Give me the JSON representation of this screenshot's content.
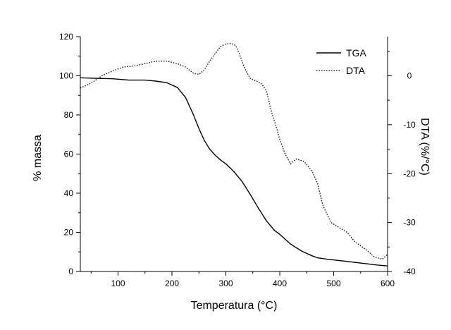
{
  "chart_data": {
    "type": "line",
    "xlabel": "Temperatura (°C)",
    "ylabel_left": "% massa",
    "ylabel_right": "DTA (%/°C)",
    "xlim": [
      30,
      600
    ],
    "ylim_left": [
      0,
      120
    ],
    "ylim_right": [
      -40,
      8
    ],
    "x_ticks": [
      100,
      200,
      300,
      400,
      500,
      600
    ],
    "y_left_ticks": [
      0,
      20,
      40,
      60,
      80,
      100,
      120
    ],
    "y_right_ticks": [
      -40,
      -30,
      -20,
      -10,
      0
    ],
    "legend_position": "top-right",
    "grid": false,
    "series": [
      {
        "name": "TGA",
        "axis": "left",
        "style": "solid",
        "x": [
          30,
          60,
          90,
          120,
          150,
          170,
          190,
          210,
          225,
          240,
          250,
          260,
          270,
          280,
          290,
          300,
          315,
          330,
          345,
          360,
          375,
          390,
          400,
          420,
          440,
          460,
          470,
          490,
          520,
          550,
          580,
          600
        ],
        "y": [
          99,
          98.7,
          98.5,
          97.8,
          97.8,
          97.3,
          96.5,
          94,
          89,
          80,
          73,
          67,
          62.5,
          59.5,
          57,
          55,
          51,
          46,
          39.5,
          32.5,
          26,
          21,
          19,
          14,
          10.5,
          8,
          7,
          6.2,
          5.3,
          4.3,
          3.3,
          2.8
        ]
      },
      {
        "name": "DTA",
        "axis": "right",
        "style": "dotted",
        "x": [
          30,
          50,
          70,
          90,
          110,
          130,
          150,
          170,
          190,
          210,
          225,
          240,
          250,
          260,
          270,
          280,
          290,
          300,
          310,
          318,
          325,
          335,
          345,
          355,
          365,
          375,
          385,
          395,
          400,
          410,
          420,
          430,
          445,
          460,
          470,
          480,
          495,
          510,
          525,
          540,
          560,
          575,
          590,
          600
        ],
        "y": [
          -2.5,
          -1.5,
          0,
          1,
          1.8,
          2,
          2.5,
          3,
          3,
          2.5,
          1.8,
          0.5,
          0.3,
          1.2,
          3,
          4.5,
          6,
          6.5,
          6.6,
          6.2,
          4.5,
          1.5,
          -0.5,
          -1,
          -1.5,
          -3,
          -7.5,
          -11,
          -13,
          -16,
          -18,
          -17,
          -17.5,
          -19.5,
          -22,
          -26.5,
          -30,
          -31,
          -32,
          -34,
          -35.5,
          -37,
          -37.5,
          -36.5
        ]
      }
    ]
  }
}
